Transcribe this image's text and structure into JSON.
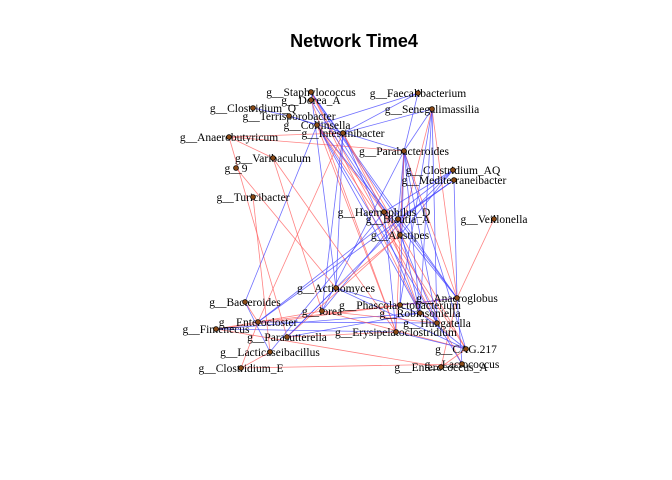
{
  "title": "Network Time4",
  "colors": {
    "positive": "#3f3fff",
    "negative": "#ff5a5a",
    "node": "#8a4a16"
  },
  "nodes": [
    {
      "id": "staphylococcus",
      "label": "g__Staphylococcus"
    },
    {
      "id": "dorea_a",
      "label": "g__Dorea_A"
    },
    {
      "id": "faecalibacterium",
      "label": "g__Faecalibacterium"
    },
    {
      "id": "clostridium_q",
      "label": "g__Clostridium_Q"
    },
    {
      "id": "senegalimassilia",
      "label": "g__Senegalimassilia"
    },
    {
      "id": "terrisporobacter",
      "label": "g__Terrisporobacter"
    },
    {
      "id": "collinsella",
      "label": "g__Collinsella"
    },
    {
      "id": "intestinibacter",
      "label": "g__Intestinibacter"
    },
    {
      "id": "anaerobutyricum",
      "label": "g__Anaerobutyricum"
    },
    {
      "id": "parabacteroides",
      "label": "g__Parabacteroides"
    },
    {
      "id": "variibaculum",
      "label": "g__Varibaculum"
    },
    {
      "id": "g9",
      "label": "g__9"
    },
    {
      "id": "clostridium_aq",
      "label": "g__Clostridium_AQ"
    },
    {
      "id": "mediterraneibacter",
      "label": "g__Mediterraneibacter"
    },
    {
      "id": "turicibacter",
      "label": "g__Turicibacter"
    },
    {
      "id": "haemophilus_d",
      "label": "g__Haemophilus_D"
    },
    {
      "id": "blautia_a",
      "label": "g__Blautia_A"
    },
    {
      "id": "veillonella",
      "label": "g__Veillonella"
    },
    {
      "id": "alistipes",
      "label": "g__Alistipes"
    },
    {
      "id": "actinomyces",
      "label": "g__Actinomyces"
    },
    {
      "id": "bacteroides",
      "label": "g__Bacteroides"
    },
    {
      "id": "anaeroglobus",
      "label": "g__Anaeroglobus"
    },
    {
      "id": "phascolarctobacterium",
      "label": "g__Phascolarctobacterium"
    },
    {
      "id": "lorea",
      "label": "g__lorea"
    },
    {
      "id": "robinsoniella",
      "label": "g__Robinsoniella"
    },
    {
      "id": "enterocloster",
      "label": "g__Enterocloster"
    },
    {
      "id": "hungatella",
      "label": "g__Hungatella"
    },
    {
      "id": "fimenecus",
      "label": "g__Fimenecus"
    },
    {
      "id": "parasutterella",
      "label": "g__Parasutterella"
    },
    {
      "id": "erysipelatoclostridium",
      "label": "g__Erysipelatoclostridium"
    },
    {
      "id": "cag217",
      "label": "g__CAG.217"
    },
    {
      "id": "lacticaseibacillus",
      "label": "g__Lacticaseibacillus"
    },
    {
      "id": "lactococcus",
      "label": "g__Lactococcus"
    },
    {
      "id": "clostridium_e",
      "label": "g__Clostridium_E"
    },
    {
      "id": "enterococcus_a",
      "label": "g__Enterococcus_A"
    }
  ],
  "edges": [
    {
      "source": "staphylococcus",
      "target": "alistipes",
      "sign": "positive"
    },
    {
      "source": "staphylococcus",
      "target": "blautia_a",
      "sign": "positive"
    },
    {
      "source": "staphylococcus",
      "target": "anaeroglobus",
      "sign": "positive"
    },
    {
      "source": "staphylococcus",
      "target": "actinomyces",
      "sign": "positive"
    },
    {
      "source": "staphylococcus",
      "target": "hungatella",
      "sign": "negative"
    },
    {
      "source": "staphylococcus",
      "target": "robinsoniella",
      "sign": "negative"
    },
    {
      "source": "dorea_a",
      "target": "haemophilus_d",
      "sign": "positive"
    },
    {
      "source": "dorea_a",
      "target": "erysipelatoclostridium",
      "sign": "negative"
    },
    {
      "source": "senegalimassilia",
      "target": "intestinibacter",
      "sign": "positive"
    },
    {
      "source": "senegalimassilia",
      "target": "parabacteroides",
      "sign": "positive"
    },
    {
      "source": "senegalimassilia",
      "target": "anaeroglobus",
      "sign": "negative"
    },
    {
      "source": "senegalimassilia",
      "target": "robinsoniella",
      "sign": "positive"
    },
    {
      "source": "senegalimassilia",
      "target": "hungatella",
      "sign": "positive"
    },
    {
      "source": "senegalimassilia",
      "target": "phascolarctobacterium",
      "sign": "positive"
    },
    {
      "source": "senegalimassilia",
      "target": "alistipes",
      "sign": "negative"
    },
    {
      "source": "faecalibacterium",
      "target": "collinsella",
      "sign": "positive"
    },
    {
      "source": "faecalibacterium",
      "target": "intestinibacter",
      "sign": "positive"
    },
    {
      "source": "faecalibacterium",
      "target": "parabacteroides",
      "sign": "positive"
    },
    {
      "source": "terrisporobacter",
      "target": "parabacteroides",
      "sign": "positive"
    },
    {
      "source": "terrisporobacter",
      "target": "collinsella",
      "sign": "positive"
    },
    {
      "source": "terrisporobacter",
      "target": "clostridium_q",
      "sign": "positive"
    },
    {
      "source": "anaerobutyricum",
      "target": "intestinibacter",
      "sign": "negative"
    },
    {
      "source": "anaerobutyricum",
      "target": "variibaculum",
      "sign": "negative"
    },
    {
      "source": "anaerobutyricum",
      "target": "parabacteroides",
      "sign": "negative"
    },
    {
      "source": "anaerobutyricum",
      "target": "parasutterella",
      "sign": "negative"
    },
    {
      "source": "collinsella",
      "target": "bacteroides",
      "sign": "positive"
    },
    {
      "source": "collinsella",
      "target": "haemophilus_d",
      "sign": "negative"
    },
    {
      "source": "collinsella",
      "target": "robinsoniella",
      "sign": "positive"
    },
    {
      "source": "collinsella",
      "target": "anaeroglobus",
      "sign": "positive"
    },
    {
      "source": "collinsella",
      "target": "hungatella",
      "sign": "positive"
    },
    {
      "source": "collinsella",
      "target": "erysipelatoclostridium",
      "sign": "negative"
    },
    {
      "source": "collinsella",
      "target": "cag217",
      "sign": "negative"
    },
    {
      "source": "intestinibacter",
      "target": "actinomyces",
      "sign": "positive"
    },
    {
      "source": "intestinibacter",
      "target": "lorea",
      "sign": "positive"
    },
    {
      "source": "intestinibacter",
      "target": "enterocloster",
      "sign": "negative"
    },
    {
      "source": "intestinibacter",
      "target": "robinsoniella",
      "sign": "positive"
    },
    {
      "source": "intestinibacter",
      "target": "lactococcus",
      "sign": "negative"
    },
    {
      "source": "intestinibacter",
      "target": "cag217",
      "sign": "negative"
    },
    {
      "source": "parabacteroides",
      "target": "blautia_a",
      "sign": "positive"
    },
    {
      "source": "parabacteroides",
      "target": "alistipes",
      "sign": "positive"
    },
    {
      "source": "parabacteroides",
      "target": "lorea",
      "sign": "positive"
    },
    {
      "source": "parabacteroides",
      "target": "phascolarctobacterium",
      "sign": "positive"
    },
    {
      "source": "parabacteroides",
      "target": "robinsoniella",
      "sign": "positive"
    },
    {
      "source": "parabacteroides",
      "target": "anaeroglobus",
      "sign": "negative"
    },
    {
      "source": "parabacteroides",
      "target": "hungatella",
      "sign": "positive"
    },
    {
      "source": "parabacteroides",
      "target": "cag217",
      "sign": "positive"
    },
    {
      "source": "parabacteroides",
      "target": "erysipelatoclostridium",
      "sign": "negative"
    },
    {
      "source": "variibaculum",
      "target": "lorea",
      "sign": "negative"
    },
    {
      "source": "variibaculum",
      "target": "erysipelatoclostridium",
      "sign": "negative"
    },
    {
      "source": "g9",
      "target": "actinomyces",
      "sign": "negative"
    },
    {
      "source": "turicibacter",
      "target": "lacticaseibacillus",
      "sign": "negative"
    },
    {
      "source": "clostridium_aq",
      "target": "haemophilus_d",
      "sign": "positive"
    },
    {
      "source": "clostridium_aq",
      "target": "alistipes",
      "sign": "positive"
    },
    {
      "source": "clostridium_aq",
      "target": "enterocloster",
      "sign": "positive"
    },
    {
      "source": "clostridium_aq",
      "target": "parasutterella",
      "sign": "positive"
    },
    {
      "source": "mediterraneibacter",
      "target": "blautia_a",
      "sign": "positive"
    },
    {
      "source": "mediterraneibacter",
      "target": "enterocloster",
      "sign": "positive"
    },
    {
      "source": "mediterraneibacter",
      "target": "anaeroglobus",
      "sign": "positive"
    },
    {
      "source": "haemophilus_d",
      "target": "alistipes",
      "sign": "negative"
    },
    {
      "source": "haemophilus_d",
      "target": "robinsoniella",
      "sign": "negative"
    },
    {
      "source": "haemophilus_d",
      "target": "erysipelatoclostridium",
      "sign": "positive"
    },
    {
      "source": "haemophilus_d",
      "target": "lacticaseibacillus",
      "sign": "positive"
    },
    {
      "source": "blautia_a",
      "target": "anaeroglobus",
      "sign": "positive"
    },
    {
      "source": "blautia_a",
      "target": "robinsoniella",
      "sign": "positive"
    },
    {
      "source": "blautia_a",
      "target": "lorea",
      "sign": "positive"
    },
    {
      "source": "alistipes",
      "target": "hungatella",
      "sign": "positive"
    },
    {
      "source": "alistipes",
      "target": "actinomyces",
      "sign": "negative"
    },
    {
      "source": "alistipes",
      "target": "parasutterella",
      "sign": "negative"
    },
    {
      "source": "veillonella",
      "target": "anaeroglobus",
      "sign": "negative"
    },
    {
      "source": "anaeroglobus",
      "target": "enterocloster",
      "sign": "negative"
    },
    {
      "source": "anaeroglobus",
      "target": "fimenecus",
      "sign": "negative"
    },
    {
      "source": "anaeroglobus",
      "target": "enterococcus_a",
      "sign": "negative"
    },
    {
      "source": "anaeroglobus",
      "target": "lactococcus",
      "sign": "positive"
    },
    {
      "source": "anaeroglobus",
      "target": "phascolarctobacterium",
      "sign": "positive"
    },
    {
      "source": "actinomyces",
      "target": "parasutterella",
      "sign": "positive"
    },
    {
      "source": "actinomyces",
      "target": "robinsoniella",
      "sign": "positive"
    },
    {
      "source": "actinomyces",
      "target": "cag217",
      "sign": "positive"
    },
    {
      "source": "bacteroides",
      "target": "enterocloster",
      "sign": "negative"
    },
    {
      "source": "bacteroides",
      "target": "lacticaseibacillus",
      "sign": "positive"
    },
    {
      "source": "fimenecus",
      "target": "robinsoniella",
      "sign": "positive"
    },
    {
      "source": "fimenecus",
      "target": "erysipelatoclostridium",
      "sign": "positive"
    },
    {
      "source": "fimenecus",
      "target": "lorea",
      "sign": "negative"
    },
    {
      "source": "fimenecus",
      "target": "enterococcus_a",
      "sign": "negative"
    },
    {
      "source": "enterocloster",
      "target": "hungatella",
      "sign": "positive"
    },
    {
      "source": "enterocloster",
      "target": "clostridium_e",
      "sign": "negative"
    },
    {
      "source": "parasutterella",
      "target": "robinsoniella",
      "sign": "positive"
    },
    {
      "source": "parasutterella",
      "target": "erysipelatoclostridium",
      "sign": "negative"
    },
    {
      "source": "lorea",
      "target": "hungatella",
      "sign": "negative"
    },
    {
      "source": "lorea",
      "target": "cag217",
      "sign": "negative"
    },
    {
      "source": "robinsoniella",
      "target": "cag217",
      "sign": "positive"
    },
    {
      "source": "robinsoniella",
      "target": "hungatella",
      "sign": "negative"
    },
    {
      "source": "erysipelatoclostridium",
      "target": "cag217",
      "sign": "positive"
    },
    {
      "source": "hungatella",
      "target": "lactococcus",
      "sign": "positive"
    },
    {
      "source": "lacticaseibacillus",
      "target": "clostridium_e",
      "sign": "negative"
    },
    {
      "source": "cag217",
      "target": "enterococcus_a",
      "sign": "negative"
    },
    {
      "source": "clostridium_e",
      "target": "lactococcus",
      "sign": "negative"
    }
  ]
}
